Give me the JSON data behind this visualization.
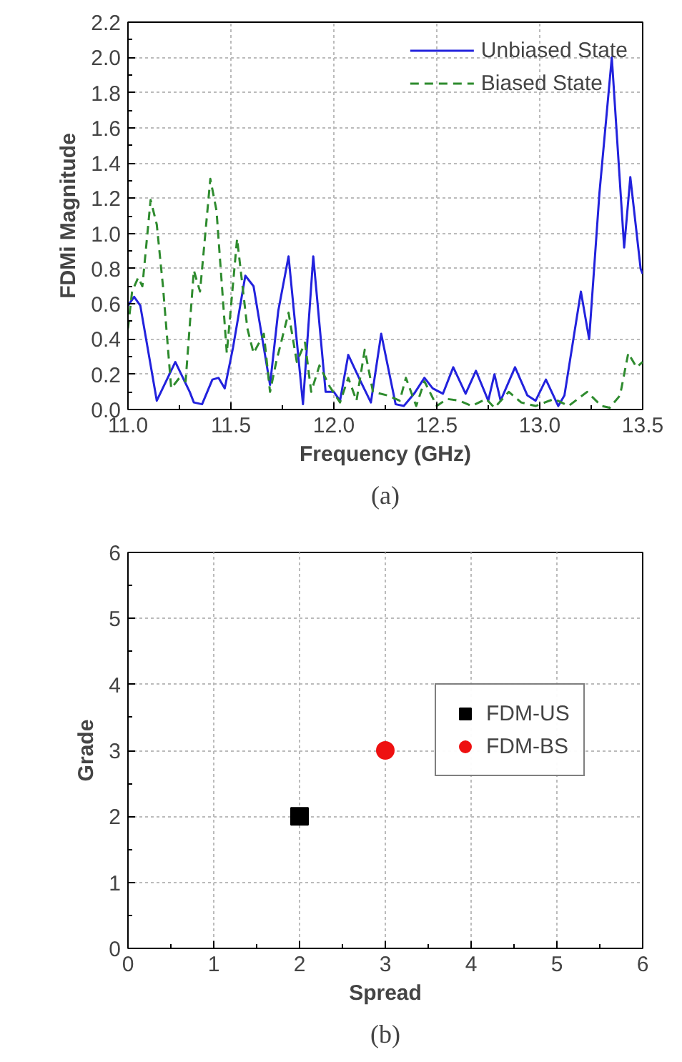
{
  "chart_data": [
    {
      "type": "line",
      "xlabel": "Frequency (GHz)",
      "ylabel": "FDMi Magnitude",
      "annotations": [
        "(a)"
      ],
      "xlim": [
        11.0,
        13.5
      ],
      "ylim": [
        0,
        2.2
      ],
      "xticks": [
        {
          "value": 11.0,
          "label": "11.0"
        },
        {
          "value": 11.5,
          "label": "11.5"
        },
        {
          "value": 12.0,
          "label": "12.0"
        },
        {
          "value": 12.5,
          "label": "12.5"
        },
        {
          "value": 13.0,
          "label": "13.0"
        },
        {
          "value": 13.5,
          "label": "13.5"
        }
      ],
      "yticks": [
        {
          "value": 0,
          "label": "0.0"
        },
        {
          "value": 0.2,
          "label": "0.2"
        },
        {
          "value": 0.4,
          "label": "0.4"
        },
        {
          "value": 0.6,
          "label": "0.6"
        },
        {
          "value": 0.8,
          "label": "0.8"
        },
        {
          "value": 1.0,
          "label": "1.0"
        },
        {
          "value": 1.2,
          "label": "1.2"
        },
        {
          "value": 1.4,
          "label": "1.4"
        },
        {
          "value": 1.6,
          "label": "1.6"
        },
        {
          "value": 1.8,
          "label": "1.8"
        },
        {
          "value": 2.0,
          "label": "2.0"
        },
        {
          "value": 2.2,
          "label": "2.2"
        }
      ],
      "grid": true,
      "legend": "top right",
      "series": [
        {
          "name": "Unbiased State",
          "color": "#2222dd",
          "line_style": "solid",
          "x": [
            11.0,
            11.03,
            11.06,
            11.14,
            11.23,
            11.3,
            11.32,
            11.36,
            11.41,
            11.44,
            11.47,
            11.51,
            11.57,
            11.61,
            11.69,
            11.73,
            11.78,
            11.85,
            11.9,
            11.96,
            12.0,
            12.03,
            12.07,
            12.13,
            12.18,
            12.23,
            12.3,
            12.34,
            12.39,
            12.44,
            12.48,
            12.53,
            12.58,
            12.64,
            12.69,
            12.75,
            12.78,
            12.81,
            12.88,
            12.94,
            12.98,
            13.03,
            13.09,
            13.12,
            13.2,
            13.24,
            13.29,
            13.35,
            13.41,
            13.44,
            13.49,
            13.5
          ],
          "values": [
            0.59,
            0.64,
            0.59,
            0.05,
            0.27,
            0.1,
            0.04,
            0.03,
            0.17,
            0.18,
            0.12,
            0.35,
            0.76,
            0.7,
            0.14,
            0.56,
            0.87,
            0.03,
            0.87,
            0.1,
            0.1,
            0.05,
            0.31,
            0.16,
            0.04,
            0.43,
            0.03,
            0.02,
            0.09,
            0.18,
            0.12,
            0.09,
            0.24,
            0.09,
            0.22,
            0.05,
            0.2,
            0.05,
            0.24,
            0.08,
            0.05,
            0.17,
            0.02,
            0.08,
            0.67,
            0.4,
            1.23,
            2.0,
            0.92,
            1.32,
            0.8,
            0.77
          ]
        },
        {
          "name": "Biased State",
          "color": "#2e8b2e",
          "line_style": "dashed",
          "x": [
            11.0,
            11.02,
            11.05,
            11.07,
            11.11,
            11.14,
            11.17,
            11.21,
            11.25,
            11.28,
            11.32,
            11.35,
            11.4,
            11.43,
            11.48,
            11.53,
            11.58,
            11.61,
            11.66,
            11.69,
            11.72,
            11.78,
            11.82,
            11.86,
            11.89,
            11.93,
            11.98,
            12.03,
            12.07,
            12.11,
            12.15,
            12.19,
            12.26,
            12.32,
            12.35,
            12.4,
            12.44,
            12.5,
            12.55,
            12.61,
            12.67,
            12.74,
            12.78,
            12.85,
            12.91,
            12.98,
            13.07,
            13.14,
            13.23,
            13.3,
            13.34,
            13.39,
            13.43,
            13.47,
            13.5
          ],
          "values": [
            0.46,
            0.67,
            0.75,
            0.7,
            1.19,
            1.05,
            0.7,
            0.12,
            0.18,
            0.16,
            0.79,
            0.67,
            1.31,
            1.13,
            0.32,
            0.97,
            0.46,
            0.32,
            0.43,
            0.1,
            0.27,
            0.55,
            0.27,
            0.38,
            0.1,
            0.25,
            0.13,
            0.04,
            0.18,
            0.05,
            0.34,
            0.1,
            0.08,
            0.05,
            0.18,
            0.02,
            0.16,
            0.02,
            0.06,
            0.05,
            0.02,
            0.06,
            0.01,
            0.1,
            0.04,
            0.02,
            0.06,
            0.02,
            0.1,
            0.02,
            0.01,
            0.08,
            0.32,
            0.24,
            0.27
          ]
        }
      ]
    },
    {
      "type": "scatter",
      "xlabel": "Spread",
      "ylabel": "Grade",
      "annotations": [
        "(b)"
      ],
      "xlim": [
        0,
        6
      ],
      "ylim": [
        0,
        6
      ],
      "xticks": [
        0,
        1,
        2,
        3,
        4,
        5,
        6
      ],
      "yticks": [
        0,
        1,
        2,
        3,
        4,
        5,
        6
      ],
      "grid": true,
      "legend": "right",
      "series": [
        {
          "name": "FDM-US",
          "color": "#000000",
          "marker": "square",
          "x": [
            2
          ],
          "values": [
            2
          ]
        },
        {
          "name": "FDM-BS",
          "color": "#ee1111",
          "marker": "circle",
          "x": [
            3
          ],
          "values": [
            3
          ]
        }
      ]
    }
  ]
}
